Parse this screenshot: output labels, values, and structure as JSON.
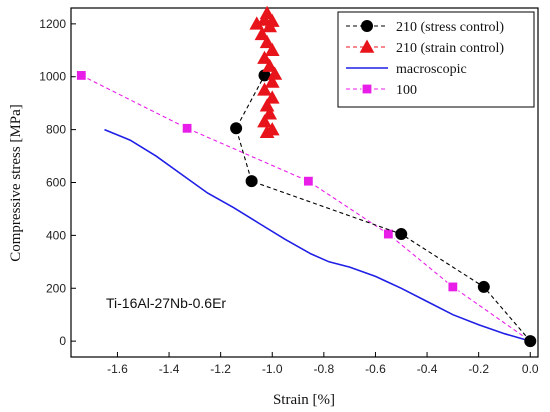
{
  "chart_data": {
    "type": "line",
    "title": "",
    "xlabel": "Strain [%]",
    "ylabel": "Compressive stress [MPa]",
    "xlim": [
      -1.78,
      0.03
    ],
    "ylim": [
      -60,
      1260
    ],
    "xticks": [
      -1.6,
      -1.4,
      -1.2,
      -1.0,
      -0.8,
      -0.6,
      -0.4,
      -0.2,
      0.0
    ],
    "xtick_labels": [
      "-1.6",
      "-1.4",
      "-1.2",
      "-1.0",
      "-0.8",
      "-0.6",
      "-0.4",
      "-0.2",
      "0.0"
    ],
    "yticks": [
      0,
      200,
      400,
      600,
      800,
      1000,
      1200
    ],
    "ytick_labels": [
      "0",
      "200",
      "400",
      "600",
      "800",
      "1000",
      "1200"
    ],
    "grid": false,
    "legend_position": "top-right",
    "annotation": "Ti-16Al-27Nb-0.6Er",
    "series": [
      {
        "name": "210 (stress control)",
        "marker": "circle",
        "line_style": "dashed",
        "color": "#000000",
        "points": [
          [
            0.0,
            0
          ],
          [
            -0.18,
            205
          ],
          [
            -0.5,
            405
          ],
          [
            -1.08,
            605
          ],
          [
            -1.14,
            805
          ],
          [
            -1.03,
            1005
          ]
        ]
      },
      {
        "name": "210 (strain control)",
        "marker": "triangle",
        "line_style": "dashed",
        "color": "#e8141b",
        "points": [
          [
            -1.02,
            790
          ],
          [
            -1.0,
            800
          ],
          [
            -1.03,
            830
          ],
          [
            -1.01,
            860
          ],
          [
            -1.02,
            890
          ],
          [
            -1.0,
            920
          ],
          [
            -1.03,
            950
          ],
          [
            -1.0,
            980
          ],
          [
            -0.99,
            1010
          ],
          [
            -1.01,
            1040
          ],
          [
            -1.03,
            1070
          ],
          [
            -1.0,
            1100
          ],
          [
            -1.02,
            1130
          ],
          [
            -1.04,
            1160
          ],
          [
            -1.01,
            1190
          ],
          [
            -1.06,
            1200
          ],
          [
            -1.03,
            1215
          ],
          [
            -1.02,
            1240
          ],
          [
            -1.0,
            1210
          ]
        ]
      },
      {
        "name": "macroscopic",
        "marker": "none",
        "line_style": "solid",
        "color": "#1f1fe6",
        "points": [
          [
            -1.65,
            800
          ],
          [
            -1.55,
            760
          ],
          [
            -1.45,
            700
          ],
          [
            -1.35,
            630
          ],
          [
            -1.25,
            560
          ],
          [
            -1.15,
            505
          ],
          [
            -1.05,
            445
          ],
          [
            -0.95,
            385
          ],
          [
            -0.85,
            330
          ],
          [
            -0.78,
            300
          ],
          [
            -0.7,
            280
          ],
          [
            -0.6,
            245
          ],
          [
            -0.5,
            200
          ],
          [
            -0.4,
            150
          ],
          [
            -0.3,
            100
          ],
          [
            -0.2,
            62
          ],
          [
            -0.1,
            28
          ],
          [
            0.0,
            0
          ]
        ]
      },
      {
        "name": "100",
        "marker": "square",
        "line_style": "dashed",
        "color": "#e81ee8",
        "points": [
          [
            -1.74,
            1005
          ],
          [
            -1.33,
            805
          ],
          [
            -0.86,
            605
          ],
          [
            -0.55,
            405
          ],
          [
            -0.3,
            205
          ],
          [
            0.0,
            0
          ]
        ]
      }
    ]
  }
}
